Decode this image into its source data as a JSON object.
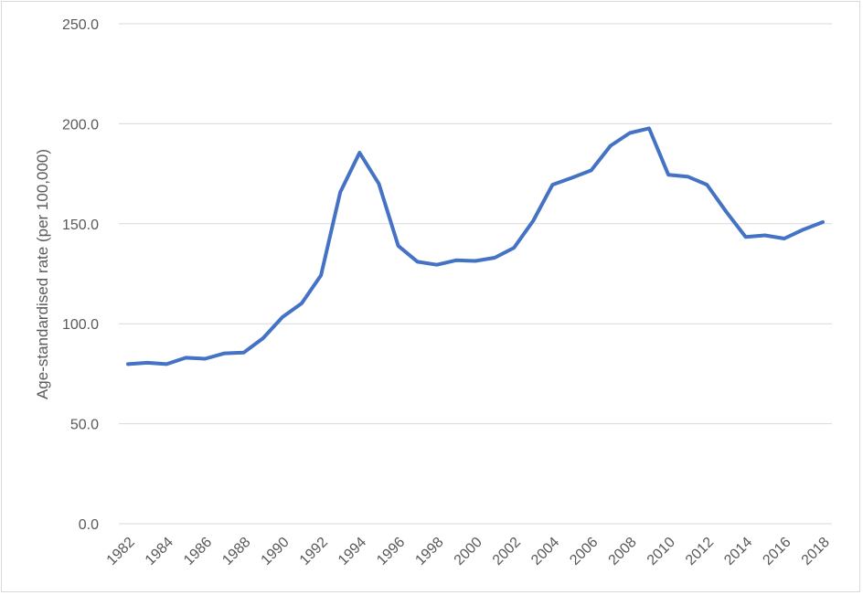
{
  "chart_data": {
    "type": "line",
    "title": "",
    "xlabel": "",
    "ylabel": "Age-standardised rate (per 100,000)",
    "ylim": [
      0,
      250
    ],
    "y_ticks": [
      "0.0",
      "50.0",
      "100.0",
      "150.0",
      "200.0",
      "250.0"
    ],
    "x_tick_labels": [
      "1982",
      "1984",
      "1986",
      "1988",
      "1990",
      "1992",
      "1994",
      "1996",
      "1998",
      "2000",
      "2002",
      "2004",
      "2006",
      "2008",
      "2010",
      "2012",
      "2014",
      "2016",
      "2018"
    ],
    "grid": true,
    "legend": "none",
    "colors": {
      "line": "#4472C4",
      "grid": "#d9d9d9",
      "text": "#595959"
    },
    "x": [
      1982,
      1983,
      1984,
      1985,
      1986,
      1987,
      1988,
      1989,
      1990,
      1991,
      1992,
      1993,
      1994,
      1995,
      1996,
      1997,
      1998,
      1999,
      2000,
      2001,
      2002,
      2003,
      2004,
      2005,
      2006,
      2007,
      2008,
      2009,
      2010,
      2011,
      2012,
      2013,
      2014,
      2015,
      2016,
      2017,
      2018
    ],
    "series": [
      {
        "values": [
          79.8,
          80.5,
          79.8,
          83.0,
          82.5,
          85.2,
          85.6,
          92.8,
          103.3,
          110.2,
          124.2,
          165.8,
          185.5,
          170.0,
          139.0,
          131.0,
          129.5,
          131.7,
          131.4,
          133.0,
          138.0,
          151.5,
          169.5,
          173.0,
          176.7,
          189.0,
          195.4,
          197.7,
          174.5,
          173.6,
          169.5,
          156.0,
          143.4,
          144.2,
          142.6,
          147.1,
          150.8
        ]
      }
    ]
  }
}
